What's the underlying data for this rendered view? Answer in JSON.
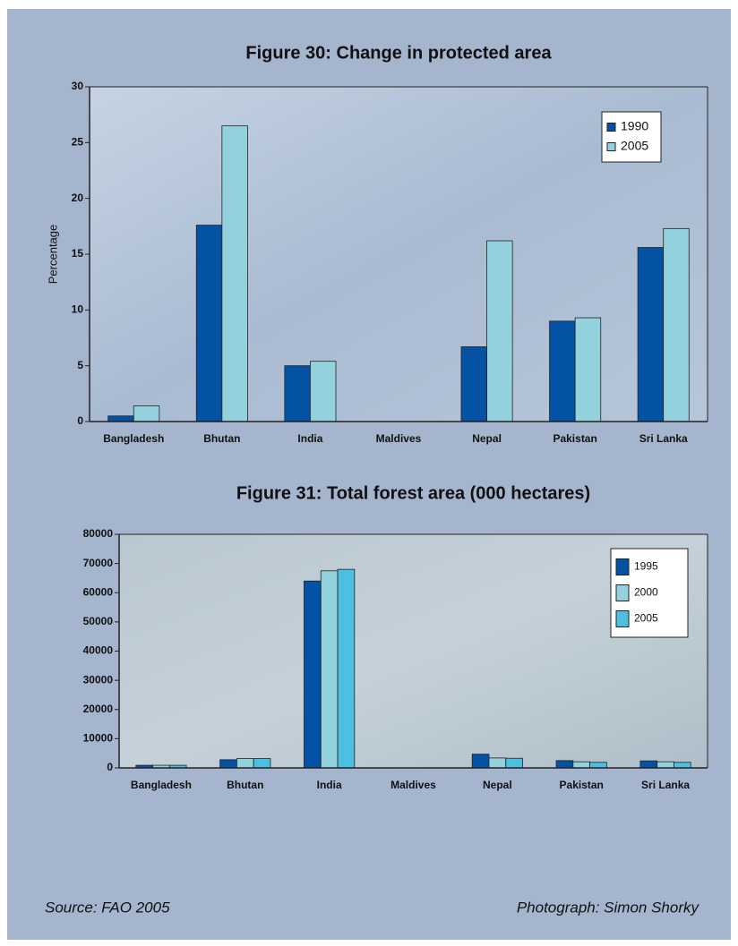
{
  "chart_data": [
    {
      "type": "bar",
      "title": "Figure 30: Change in protected area",
      "y_label": "Percentage",
      "categories": [
        "Bangladesh",
        "Bhutan",
        "India",
        "Maldives",
        "Nepal",
        "Pakistan",
        "Sri Lanka"
      ],
      "series": [
        {
          "name": "1990",
          "color": "#0352a3",
          "values": [
            0.5,
            17.6,
            5.0,
            0,
            6.7,
            9.0,
            15.6
          ]
        },
        {
          "name": "2005",
          "color": "#93d2dc",
          "values": [
            1.4,
            26.5,
            5.4,
            0,
            16.2,
            9.3,
            17.3
          ]
        }
      ],
      "ylim": [
        0,
        30
      ],
      "yticks": [
        0,
        5,
        10,
        15,
        20,
        25,
        30
      ],
      "legend": "upper-right"
    },
    {
      "type": "bar",
      "title": "Figure 31: Total forest area (000 hectares)",
      "categories": [
        "Bangladesh",
        "Bhutan",
        "India",
        "Maldives",
        "Nepal",
        "Pakistan",
        "Sri Lanka"
      ],
      "series": [
        {
          "name": "1995",
          "color": "#0352a3",
          "values": [
            900,
            2800,
            64000,
            0,
            4700,
            2500,
            2400
          ]
        },
        {
          "name": "2000",
          "color": "#93d2dc",
          "values": [
            900,
            3200,
            67500,
            0,
            3400,
            2100,
            2100
          ]
        },
        {
          "name": "2005",
          "color": "#4dbfe0",
          "values": [
            900,
            3200,
            68000,
            0,
            3300,
            1900,
            1900
          ]
        }
      ],
      "ylim": [
        0,
        80000
      ],
      "yticks": [
        0,
        10000,
        20000,
        30000,
        40000,
        50000,
        60000,
        70000,
        80000
      ],
      "legend": "upper-right"
    }
  ],
  "source": "Source: FAO 2005",
  "credit": "Photograph: Simon Shorky"
}
